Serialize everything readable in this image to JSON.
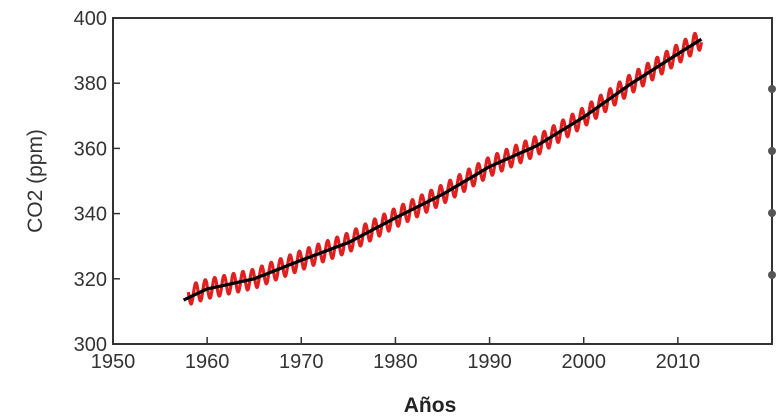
{
  "chart_data": {
    "type": "line",
    "title": "",
    "xlabel": "Años",
    "ylabel": "CO2 (ppm)",
    "xlim": [
      1950,
      2020
    ],
    "ylim": [
      300,
      400
    ],
    "xticks": [
      1950,
      1960,
      1970,
      1980,
      1990,
      2000,
      2010
    ],
    "yticks": [
      300,
      320,
      340,
      360,
      380,
      400
    ],
    "grid": false,
    "legend": "none",
    "series": [
      {
        "color": "#000000",
        "kind": "smoothed trend",
        "x": [
          1957.5,
          1960,
          1965,
          1970,
          1975,
          1980,
          1985,
          1990,
          1995,
          2000,
          2005,
          2010,
          2012.5
        ],
        "y": [
          313.5,
          316.9,
          320.0,
          325.7,
          331.1,
          338.7,
          345.9,
          354.4,
          360.8,
          369.6,
          379.8,
          389.0,
          393.5
        ]
      },
      {
        "color": "#e02020",
        "kind": "monthly values with seasonal cycle",
        "seasonal_amplitude_ppm": 3,
        "x": [
          1958,
          1960,
          1965,
          1970,
          1975,
          1980,
          1985,
          1990,
          1995,
          2000,
          2005,
          2010,
          2012.5
        ],
        "y": [
          315.0,
          316.9,
          320.0,
          325.7,
          331.1,
          338.7,
          345.9,
          354.4,
          360.8,
          369.6,
          379.8,
          389.0,
          393.5
        ]
      }
    ]
  }
}
